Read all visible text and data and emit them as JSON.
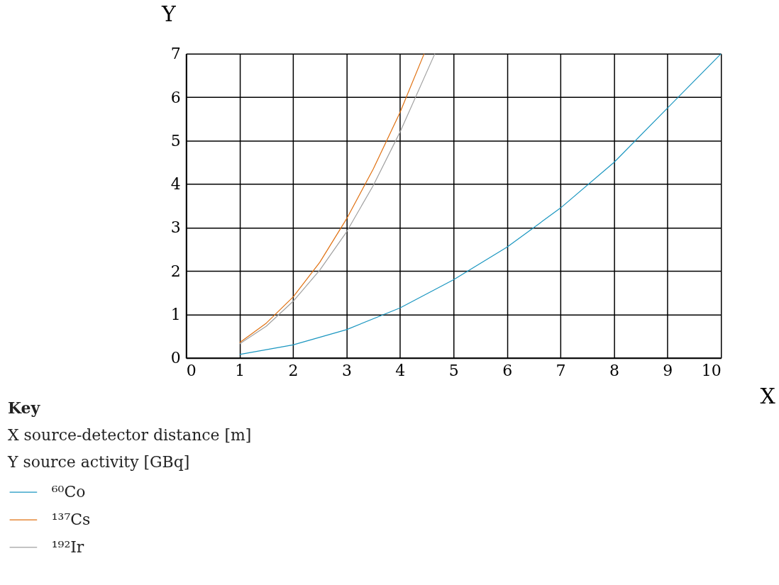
{
  "chart_data": {
    "type": "line",
    "xlabel": "X",
    "ylabel": "Y",
    "xlim": [
      0,
      10
    ],
    "xticks": [
      0,
      1,
      2,
      3,
      4,
      5,
      6,
      7,
      8,
      9,
      10
    ],
    "ylim": [
      0,
      7
    ],
    "yticks": [
      0,
      1,
      2,
      3,
      4,
      5,
      6,
      7
    ],
    "grid": true,
    "legend": "bottom left",
    "line_style": "solid",
    "marker": "none",
    "annotations": [
      "Key",
      "X      source-detector distance [m]",
      "Y      source activity [GBq]"
    ],
    "series": [
      {
        "name": "⁶⁰Co",
        "color": "#1a96c0",
        "x": [
          1,
          2,
          3,
          4,
          5,
          6,
          7,
          8,
          9,
          10
        ],
        "values": [
          0.08,
          0.3,
          0.65,
          1.15,
          1.8,
          2.55,
          3.45,
          4.5,
          5.75,
          7
        ]
      },
      {
        "name": "¹³⁷Cs",
        "color": "#e07010",
        "x": [
          1,
          1.5,
          2,
          2.5,
          3,
          3.5,
          4,
          4.45
        ],
        "values": [
          0.35,
          0.8,
          1.4,
          2.2,
          3.2,
          4.35,
          5.65,
          7
        ]
      },
      {
        "name": "¹⁹²Ir",
        "color": "#a0a0a0",
        "x": [
          1,
          1.5,
          2,
          2.5,
          3,
          3.5,
          4,
          4.65
        ],
        "values": [
          0.32,
          0.73,
          1.3,
          2.02,
          2.9,
          3.97,
          5.2,
          7
        ]
      }
    ]
  }
}
